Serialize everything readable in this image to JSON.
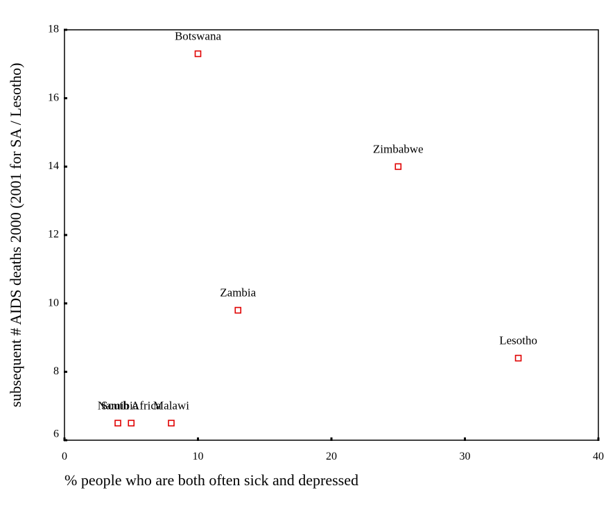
{
  "chart_data": {
    "type": "scatter",
    "x_label": "% people who are both often sick and depressed",
    "y_label": "subsequent # AIDS deaths 2000 (2001 for SA / Lesotho)",
    "series": [
      {
        "color": "#e00000",
        "labels": [
          "Botswana",
          "Zimbabwe",
          "Zambia",
          "Lesotho",
          "Namibia",
          "South Africa",
          "Malawi"
        ],
        "x": [
          10,
          25,
          13,
          34,
          4,
          5,
          8
        ],
        "values": [
          17.3,
          14.0,
          9.8,
          8.4,
          6.5,
          6.5,
          6.5
        ]
      }
    ],
    "xlim": [
      0,
      40
    ],
    "xticks": [
      0,
      10,
      20,
      30,
      40
    ],
    "ylim": [
      6,
      18
    ],
    "yticks": [
      6,
      8,
      10,
      12,
      14,
      16,
      18
    ]
  }
}
